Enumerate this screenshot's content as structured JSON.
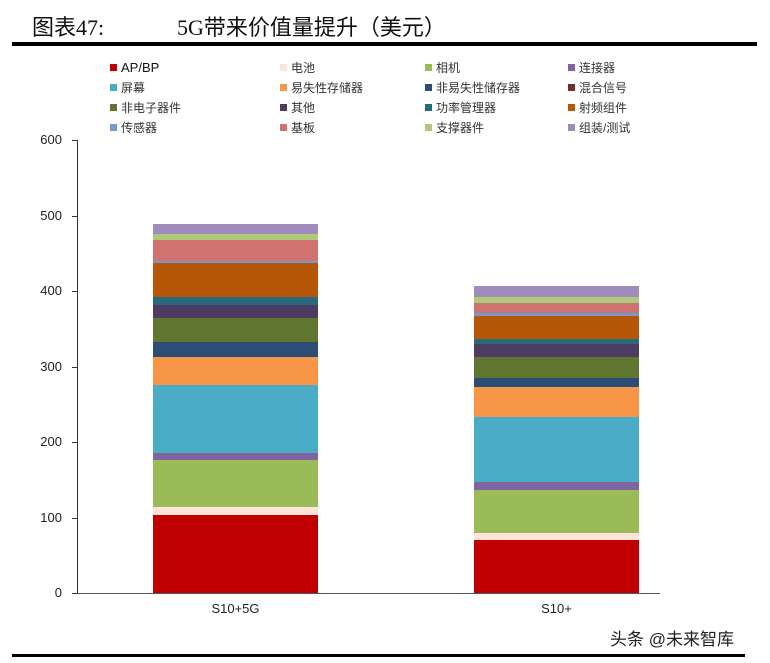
{
  "header": {
    "figure_number": "图表47:",
    "title": "5G带来价值量提升（美元）"
  },
  "watermark": "头条 @未来智库",
  "chart_data": {
    "type": "bar",
    "stacked": true,
    "title": "5G带来价值量提升（美元）",
    "xlabel": "",
    "ylabel": "",
    "ylim": [
      0,
      600
    ],
    "yticks": [
      0,
      100,
      200,
      300,
      400,
      500,
      600
    ],
    "categories": [
      "S10+5G",
      "S10+"
    ],
    "legend_position": "top",
    "grid": false,
    "series": [
      {
        "name": "AP/BP",
        "color": "#C00000",
        "values": [
          103,
          70
        ]
      },
      {
        "name": "电池",
        "color": "#FCE4D6",
        "values": [
          11,
          10
        ]
      },
      {
        "name": "相机",
        "color": "#9BBB59",
        "values": [
          62,
          57
        ]
      },
      {
        "name": "连接器",
        "color": "#8064A2",
        "values": [
          10,
          10
        ]
      },
      {
        "name": "屏幕",
        "color": "#4BACC6",
        "values": [
          90,
          86
        ]
      },
      {
        "name": "易失性存储器",
        "color": "#F79646",
        "values": [
          36,
          40
        ]
      },
      {
        "name": "非易失性储存器",
        "color": "#2C4D75",
        "values": [
          20,
          12
        ]
      },
      {
        "name": "混合信号",
        "color": "#772C2A",
        "values": [
          0,
          0
        ]
      },
      {
        "name": "非电子器件",
        "color": "#5F7530",
        "values": [
          32,
          28
        ]
      },
      {
        "name": "其他",
        "color": "#4D3B62",
        "values": [
          18,
          17
        ]
      },
      {
        "name": "功率管理器",
        "color": "#276A7C",
        "values": [
          10,
          7
        ]
      },
      {
        "name": "射频组件",
        "color": "#B65708",
        "values": [
          45,
          30
        ]
      },
      {
        "name": "传感器",
        "color": "#729ACA",
        "values": [
          3,
          4
        ]
      },
      {
        "name": "基板",
        "color": "#D07370",
        "values": [
          28,
          13
        ]
      },
      {
        "name": "支撑器件",
        "color": "#AFC97A",
        "values": [
          8,
          8
        ]
      },
      {
        "name": "组装/测试",
        "color": "#A18BBD",
        "values": [
          13,
          15
        ]
      }
    ],
    "totals": [
      489,
      407
    ]
  }
}
